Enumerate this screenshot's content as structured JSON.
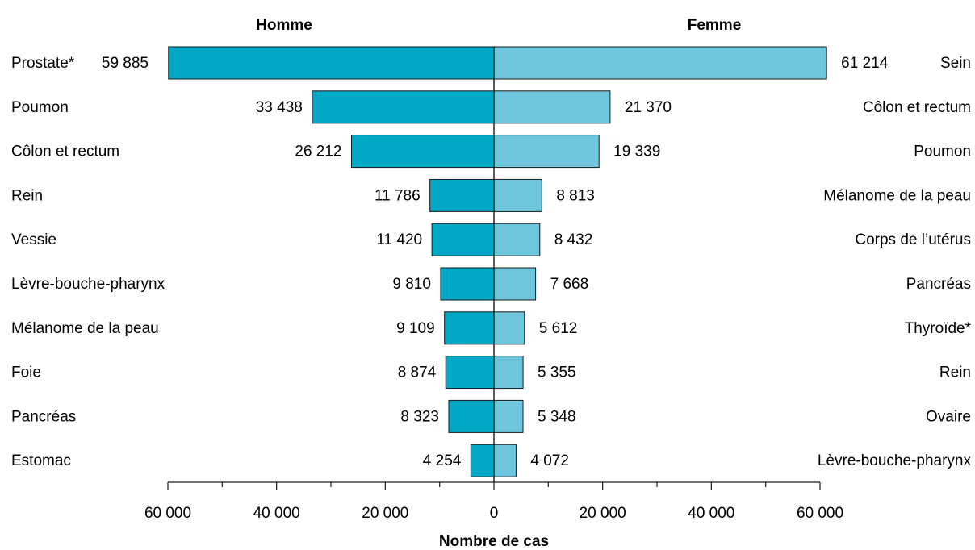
{
  "chart_data": {
    "type": "bar",
    "orientation": "horizontal-pyramid",
    "xlabel": "Nombre de cas",
    "xlim": [
      -60000,
      60000
    ],
    "x_ticks": [
      -60000,
      -40000,
      -20000,
      0,
      20000,
      40000,
      60000
    ],
    "x_tick_labels": [
      "60 000",
      "40 000",
      "20 000",
      "0",
      "20 000",
      "40 000",
      "60 000"
    ],
    "grid": false,
    "series": [
      {
        "name": "Homme",
        "color": "#00a8c6",
        "categories": [
          "Prostate*",
          "Poumon",
          "Côlon et rectum",
          "Rein",
          "Vessie",
          "Lèvre-bouche-pharynx",
          "Mélanome de la peau",
          "Foie",
          "Pancréas",
          "Estomac"
        ],
        "values": [
          59885,
          33438,
          26212,
          11786,
          11420,
          9810,
          9109,
          8874,
          8323,
          4254
        ],
        "value_labels": [
          "59 885",
          "33 438",
          "26 212",
          "11 786",
          "11 420",
          "9 810",
          "9 109",
          "8 874",
          "8 323",
          "4 254"
        ]
      },
      {
        "name": "Femme",
        "color": "#6ec6dc",
        "categories": [
          "Sein",
          "Côlon et rectum",
          "Poumon",
          "Mélanome de la peau",
          "Corps de l’utérus",
          "Pancréas",
          "Thyroïde*",
          "Rein",
          "Ovaire",
          "Lèvre-bouche-pharynx"
        ],
        "values": [
          61214,
          21370,
          19339,
          8813,
          8432,
          7668,
          5612,
          5355,
          5348,
          4072
        ],
        "value_labels": [
          "61 214",
          "21 370",
          "19 339",
          "8 813",
          "8 432",
          "7 668",
          "5 612",
          "5 355",
          "5 348",
          "4 072"
        ]
      }
    ]
  }
}
